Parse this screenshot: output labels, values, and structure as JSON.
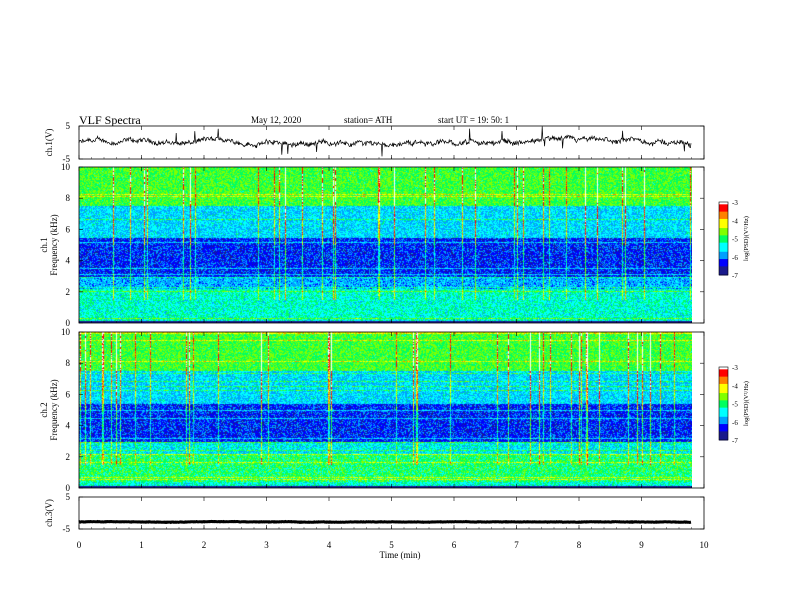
{
  "header": {
    "title": "VLF  Spectra",
    "date": "May 12, 2020",
    "station": "station= ATH",
    "start": "start  UT  =    19: 50: 1"
  },
  "colors": {
    "colormap": [
      "#000000",
      "#1a1a8c",
      "#0000ff",
      "#00a0ff",
      "#00ffff",
      "#00ff60",
      "#80ff00",
      "#ffff00",
      "#ff8000",
      "#ff0000",
      "#ffffff"
    ],
    "trace": "#000000"
  },
  "chart_data": [
    {
      "type": "line",
      "name": "ch1-waveform",
      "ylabel": "ch.1(V)",
      "ylim": [
        -5,
        5
      ],
      "yticks": [
        "5",
        "-5"
      ],
      "trace_level_V": 0,
      "trace_amplitude_V": 1.2,
      "xlim": [
        0,
        10
      ]
    },
    {
      "type": "heatmap",
      "name": "ch1-spectrogram",
      "ylabel": "ch.1\nFrequency  (kHz)",
      "ylim": [
        0,
        10
      ],
      "yticks": [
        "0",
        "2",
        "4",
        "6",
        "8",
        "10"
      ],
      "data_end_min": 9.8,
      "colorbar": {
        "label": "log(PSD)(V²/Hz)",
        "range": [
          -7,
          -3
        ],
        "ticks": [
          "-3",
          "-4",
          "-5",
          "-6",
          "-7"
        ]
      }
    },
    {
      "type": "heatmap",
      "name": "ch2-spectrogram",
      "ylabel": "ch.2\nFrequency  (kHz)",
      "ylim": [
        0,
        10
      ],
      "yticks": [
        "0",
        "2",
        "4",
        "6",
        "8",
        "10"
      ],
      "data_end_min": 9.8,
      "colorbar": {
        "label": "log(PSD)(V²/Hz)",
        "range": [
          -7,
          -3
        ],
        "ticks": [
          "-3",
          "-4",
          "-5",
          "-6",
          "-7"
        ]
      }
    },
    {
      "type": "line",
      "name": "ch3-waveform",
      "ylabel": "ch.3(V)",
      "ylim": [
        -5,
        5
      ],
      "yticks": [
        "5",
        "-5"
      ],
      "trace_level_V": -2.8,
      "trace_amplitude_V": 0.1,
      "xlim": [
        0,
        10
      ],
      "xlabel": "Time  (min)",
      "xticks": [
        "0",
        "1",
        "2",
        "3",
        "4",
        "5",
        "6",
        "7",
        "8",
        "9",
        "10"
      ]
    }
  ]
}
